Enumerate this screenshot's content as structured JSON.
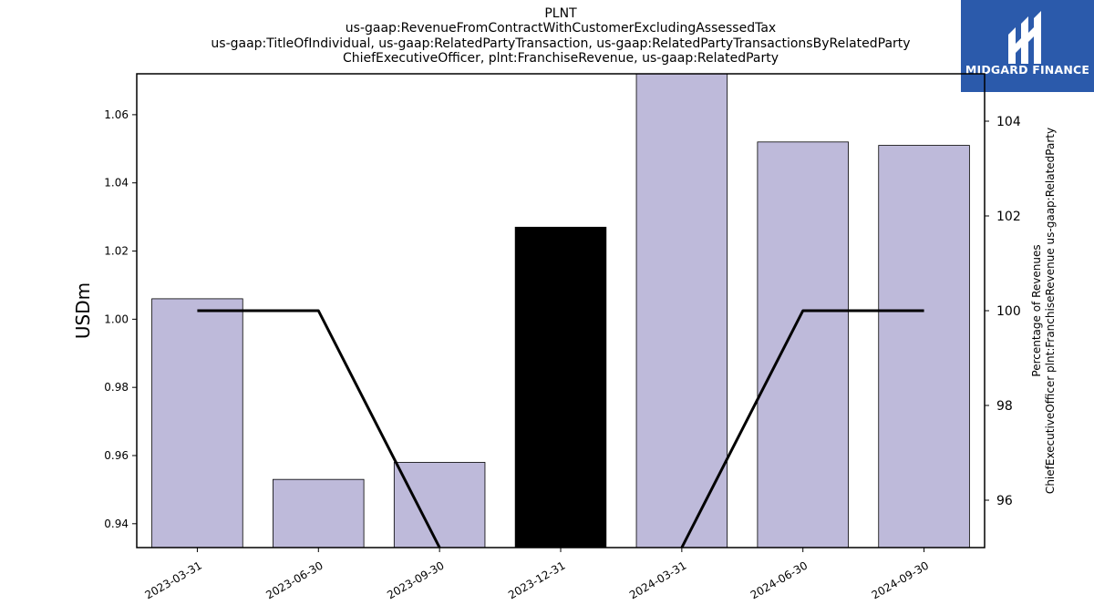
{
  "header": {
    "title_lines": [
      "PLNT",
      "us-gaap:RevenueFromContractWithCustomerExcludingAssessedTax",
      "us-gaap:TitleOfIndividual, us-gaap:RelatedPartyTransaction, us-gaap:RelatedPartyTransactionsByRelatedParty",
      "ChiefExecutiveOfficer, plnt:FranchiseRevenue, us-gaap:RelatedParty"
    ]
  },
  "logo": {
    "text": "MIDGARD FINANCE",
    "bg_color": "#2b5aab",
    "icon": "midgard-m-logo-icon"
  },
  "chart_data": {
    "type": "bar",
    "categories": [
      "2023-03-31",
      "2023-06-30",
      "2023-09-30",
      "2023-12-31",
      "2024-03-31",
      "2024-06-30",
      "2024-09-30"
    ],
    "values": [
      1.006,
      0.953,
      0.958,
      1.027,
      1.072,
      1.052,
      1.051
    ],
    "bar_colors": [
      "#bebada",
      "#bebada",
      "#bebada",
      "#000000",
      "#bebada",
      "#bebada",
      "#bebada"
    ],
    "ylabel": "USDm",
    "ylim": [
      0.933,
      1.072
    ],
    "yticks": [
      "0.94",
      "0.96",
      "0.98",
      "1.00",
      "1.02",
      "1.04",
      "1.06"
    ],
    "line_series": {
      "values": [
        100,
        100,
        95,
        null,
        95,
        100,
        100
      ],
      "color": "#000000"
    },
    "y2label_lines": [
      "Percentage of Revenues",
      "ChiefExecutiveOfficer plnt:FranchiseRevenue us-gaap:RelatedParty"
    ],
    "y2lim": [
      95,
      105
    ],
    "y2ticks": [
      "96",
      "98",
      "100",
      "102",
      "104"
    ],
    "grid": false,
    "legend": "none"
  }
}
